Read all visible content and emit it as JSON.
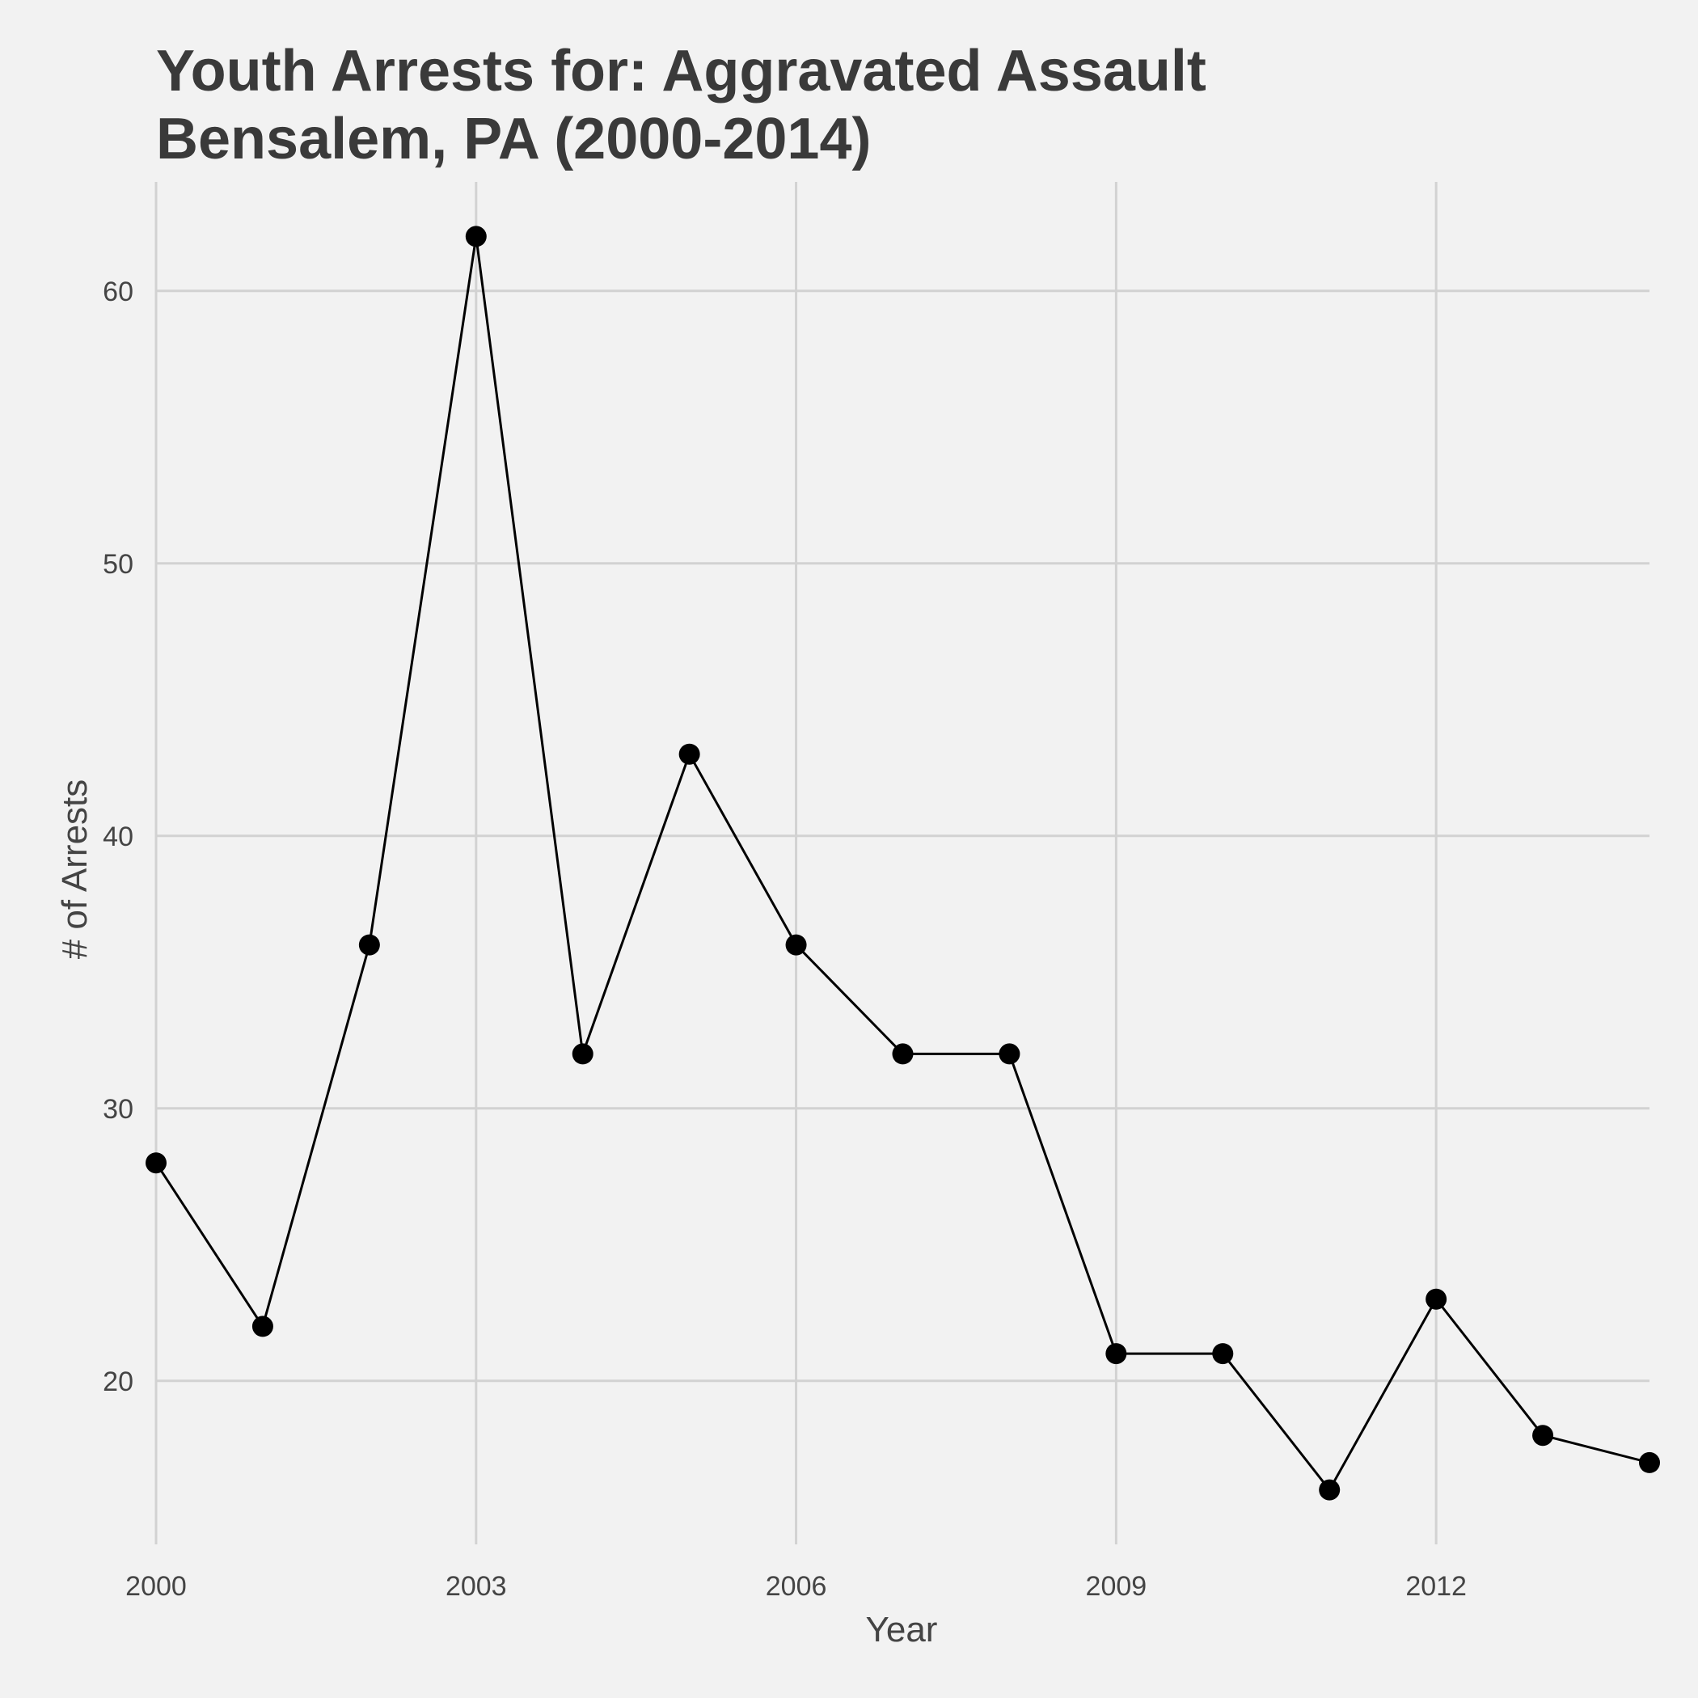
{
  "chart_data": {
    "type": "line",
    "title_line1": "Youth Arrests for: Aggravated Assault",
    "title_line2": "Bensalem, PA (2000-2014)",
    "xlabel": "Year",
    "ylabel": "# of Arrests",
    "x": [
      2000,
      2001,
      2002,
      2003,
      2004,
      2005,
      2006,
      2007,
      2008,
      2009,
      2010,
      2011,
      2012,
      2013,
      2014
    ],
    "y": [
      28,
      22,
      36,
      62,
      32,
      43,
      36,
      32,
      32,
      21,
      21,
      16,
      23,
      18,
      17
    ],
    "xlim": [
      2000,
      2014
    ],
    "ylim": [
      14,
      64
    ],
    "x_ticks": [
      2000,
      2003,
      2006,
      2009,
      2012
    ],
    "y_ticks": [
      20,
      30,
      40,
      50,
      60
    ],
    "grid": true,
    "colors": {
      "background": "#f2f2f2",
      "grid": "#d2d2d2",
      "line": "#000000",
      "points": "#000000",
      "text": "#3a3a3a"
    }
  }
}
